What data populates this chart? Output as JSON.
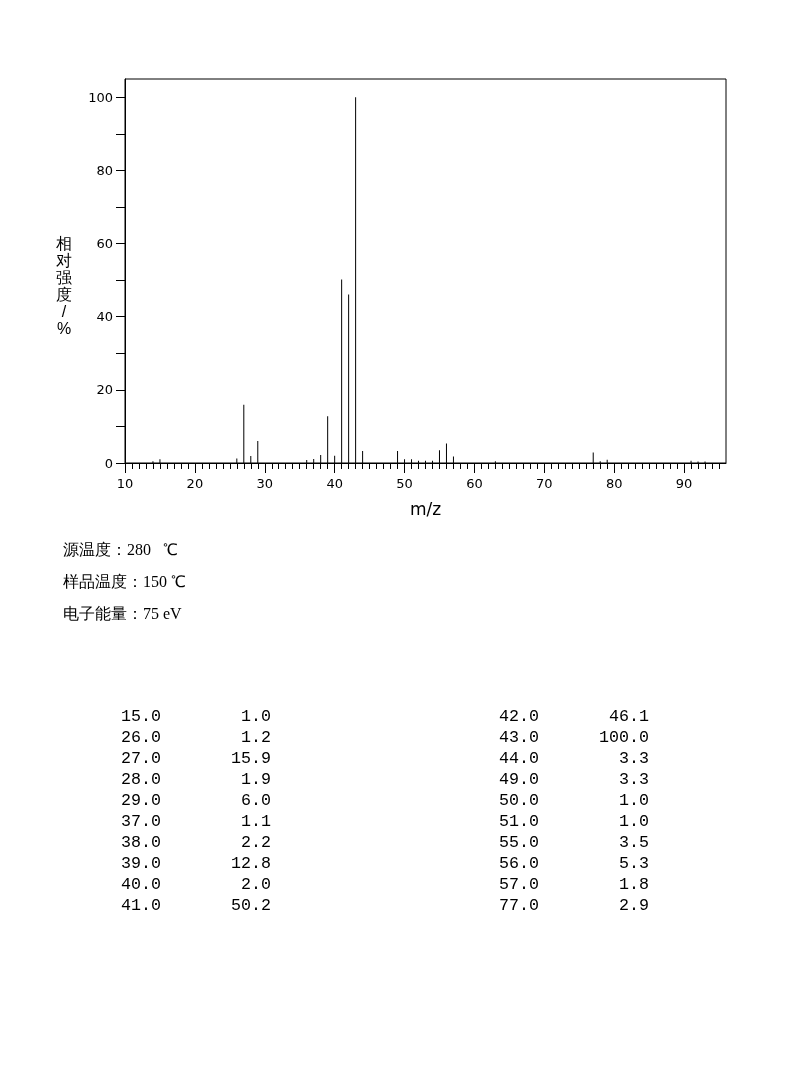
{
  "chart_data": [
    {
      "type": "bar",
      "xlabel": "m/z",
      "ylabel": "相对强度/%",
      "x": [
        14,
        15,
        26,
        27,
        28,
        29,
        36,
        37,
        38,
        39,
        40,
        41,
        42,
        43,
        44,
        49,
        50,
        51,
        52,
        53,
        54,
        55,
        56,
        57,
        63,
        77,
        78,
        79,
        91,
        92,
        93
      ],
      "values": [
        0.5,
        1.0,
        1.2,
        15.9,
        1.9,
        6.0,
        0.8,
        1.1,
        2.2,
        12.8,
        2.0,
        50.2,
        46.1,
        100.0,
        3.3,
        3.3,
        1.0,
        1.0,
        0.6,
        0.6,
        0.6,
        3.5,
        5.3,
        1.8,
        0.5,
        2.9,
        0.5,
        0.9,
        0.6,
        0.4,
        0.4
      ],
      "color": "#000000",
      "xlim": [
        10,
        96
      ],
      "xticks": [
        10,
        {
          "value": 11,
          "label": null
        },
        {
          "value": 12,
          "label": null
        },
        {
          "value": 13,
          "label": null
        },
        {
          "value": 14,
          "label": null
        },
        {
          "value": 15,
          "label": null
        },
        {
          "value": 16,
          "label": null
        },
        {
          "value": 17,
          "label": null
        },
        {
          "value": 18,
          "label": null
        },
        {
          "value": 19,
          "label": null
        },
        20,
        {
          "value": 21,
          "label": null
        },
        {
          "value": 22,
          "label": null
        },
        {
          "value": 23,
          "label": null
        },
        {
          "value": 24,
          "label": null
        },
        {
          "value": 25,
          "label": null
        },
        {
          "value": 26,
          "label": null
        },
        {
          "value": 27,
          "label": null
        },
        {
          "value": 28,
          "label": null
        },
        {
          "value": 29,
          "label": null
        },
        30,
        {
          "value": 31,
          "label": null
        },
        {
          "value": 32,
          "label": null
        },
        {
          "value": 33,
          "label": null
        },
        {
          "value": 34,
          "label": null
        },
        {
          "value": 35,
          "label": null
        },
        {
          "value": 36,
          "label": null
        },
        {
          "value": 37,
          "label": null
        },
        {
          "value": 38,
          "label": null
        },
        {
          "value": 39,
          "label": null
        },
        40,
        {
          "value": 41,
          "label": null
        },
        {
          "value": 42,
          "label": null
        },
        {
          "value": 43,
          "label": null
        },
        {
          "value": 44,
          "label": null
        },
        {
          "value": 45,
          "label": null
        },
        {
          "value": 46,
          "label": null
        },
        {
          "value": 47,
          "label": null
        },
        {
          "value": 48,
          "label": null
        },
        {
          "value": 49,
          "label": null
        },
        50,
        {
          "value": 51,
          "label": null
        },
        {
          "value": 52,
          "label": null
        },
        {
          "value": 53,
          "label": null
        },
        {
          "value": 54,
          "label": null
        },
        {
          "value": 55,
          "label": null
        },
        {
          "value": 56,
          "label": null
        },
        {
          "value": 57,
          "label": null
        },
        {
          "value": 58,
          "label": null
        },
        {
          "value": 59,
          "label": null
        },
        60,
        {
          "value": 61,
          "label": null
        },
        {
          "value": 62,
          "label": null
        },
        {
          "value": 63,
          "label": null
        },
        {
          "value": 64,
          "label": null
        },
        {
          "value": 65,
          "label": null
        },
        {
          "value": 66,
          "label": null
        },
        {
          "value": 67,
          "label": null
        },
        {
          "value": 68,
          "label": null
        },
        {
          "value": 69,
          "label": null
        },
        70,
        {
          "value": 71,
          "label": null
        },
        {
          "value": 72,
          "label": null
        },
        {
          "value": 73,
          "label": null
        },
        {
          "value": 74,
          "label": null
        },
        {
          "value": 75,
          "label": null
        },
        {
          "value": 76,
          "label": null
        },
        {
          "value": 77,
          "label": null
        },
        {
          "value": 78,
          "label": null
        },
        {
          "value": 79,
          "label": null
        },
        80,
        {
          "value": 81,
          "label": null
        },
        {
          "value": 82,
          "label": null
        },
        {
          "value": 83,
          "label": null
        },
        {
          "value": 84,
          "label": null
        },
        {
          "value": 85,
          "label": null
        },
        {
          "value": 86,
          "label": null
        },
        {
          "value": 87,
          "label": null
        },
        {
          "value": 88,
          "label": null
        },
        {
          "value": 89,
          "label": null
        },
        90,
        {
          "value": 91,
          "label": null
        },
        {
          "value": 92,
          "label": null
        },
        {
          "value": 93,
          "label": null
        },
        {
          "value": 94,
          "label": null
        },
        {
          "value": 95,
          "label": null
        }
      ],
      "ylim": [
        0,
        105
      ],
      "yticks": [
        0,
        {
          "value": 10,
          "label": null
        },
        20,
        {
          "value": 30,
          "label": null
        },
        40,
        {
          "value": 50,
          "label": null
        },
        60,
        {
          "value": 70,
          "label": null
        },
        80,
        {
          "value": 90,
          "label": null
        },
        100
      ],
      "annotations": [
        "源温度：280   ℃",
        "样品温度：150 ℃",
        "电子能量：75 eV"
      ]
    },
    {
      "type": "other",
      "annotations": [
        "15.0 1.0",
        "26.0 1.2",
        "27.0 15.9",
        "28.0 1.9",
        "29.0 6.0",
        "37.0 1.1",
        "38.0 2.2",
        "39.0 12.8",
        "40.0 2.0",
        "41.0 50.2",
        "42.0 46.1",
        "43.0 100.0",
        "44.0 3.3",
        "49.0 3.3",
        "50.0 1.0",
        "51.0 1.0",
        "55.0 3.5",
        "56.0 5.3",
        "57.0 1.8",
        "77.0 2.9"
      ]
    }
  ]
}
